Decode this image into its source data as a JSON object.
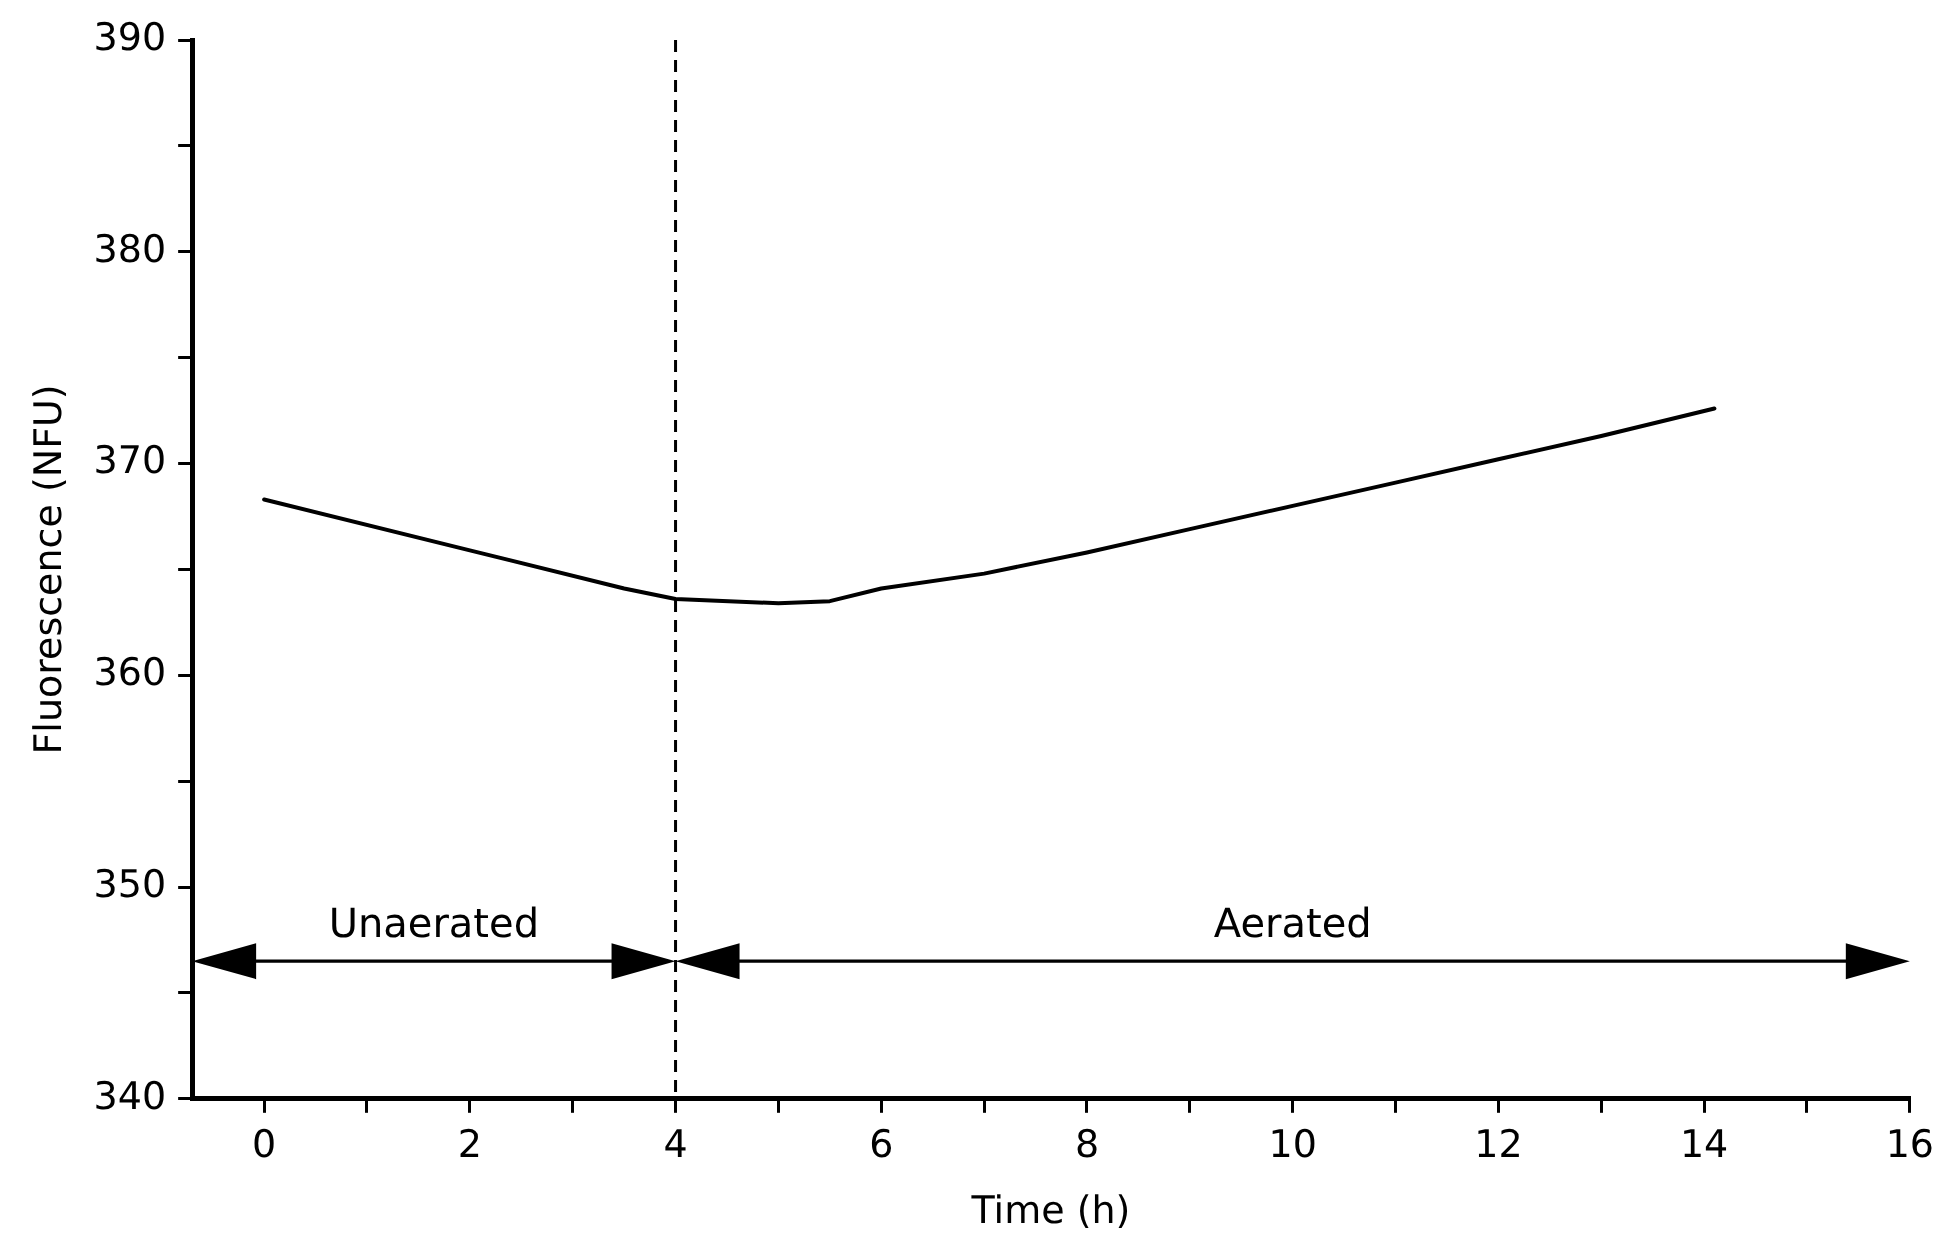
{
  "chart_data": {
    "type": "line",
    "xlabel": "Time (h)",
    "ylabel": "Fluorescence (NFU)",
    "x": [
      0,
      2,
      3.5,
      4,
      5,
      5.5,
      6,
      7,
      8,
      9,
      10,
      11,
      12,
      13,
      14.1
    ],
    "series": [
      {
        "color": "#000000",
        "values": [
          368.3,
          365.9,
          364.1,
          363.6,
          363.4,
          363.5,
          364.1,
          364.8,
          365.8,
          366.9,
          368.0,
          369.1,
          370.2,
          371.3,
          372.6
        ]
      }
    ],
    "xlim": [
      -0.7,
      16
    ],
    "ylim": [
      340,
      390
    ],
    "xticks": [
      0,
      {
        "value": 1,
        "label": null
      },
      2,
      {
        "value": 3,
        "label": null
      },
      4,
      {
        "value": 5,
        "label": null
      },
      6,
      {
        "value": 7,
        "label": null
      },
      8,
      {
        "value": 9,
        "label": null
      },
      10,
      {
        "value": 11,
        "label": null
      },
      12,
      {
        "value": 13,
        "label": null
      },
      14,
      {
        "value": 15,
        "label": null
      },
      16
    ],
    "yticks": [
      340,
      {
        "value": 345,
        "label": null
      },
      350,
      {
        "value": 355,
        "label": null
      },
      360,
      {
        "value": 365,
        "label": null
      },
      370,
      {
        "value": 375,
        "label": null
      },
      380,
      {
        "value": 385,
        "label": null
      },
      390
    ],
    "ref_lines": [
      {
        "axis": "x",
        "value": 4,
        "line_style": "dashed",
        "color": "#000000"
      }
    ],
    "annotations": [
      "Unaerated",
      "Aerated"
    ],
    "grid": false,
    "legend": false,
    "marker": "none",
    "line_style": "solid"
  }
}
